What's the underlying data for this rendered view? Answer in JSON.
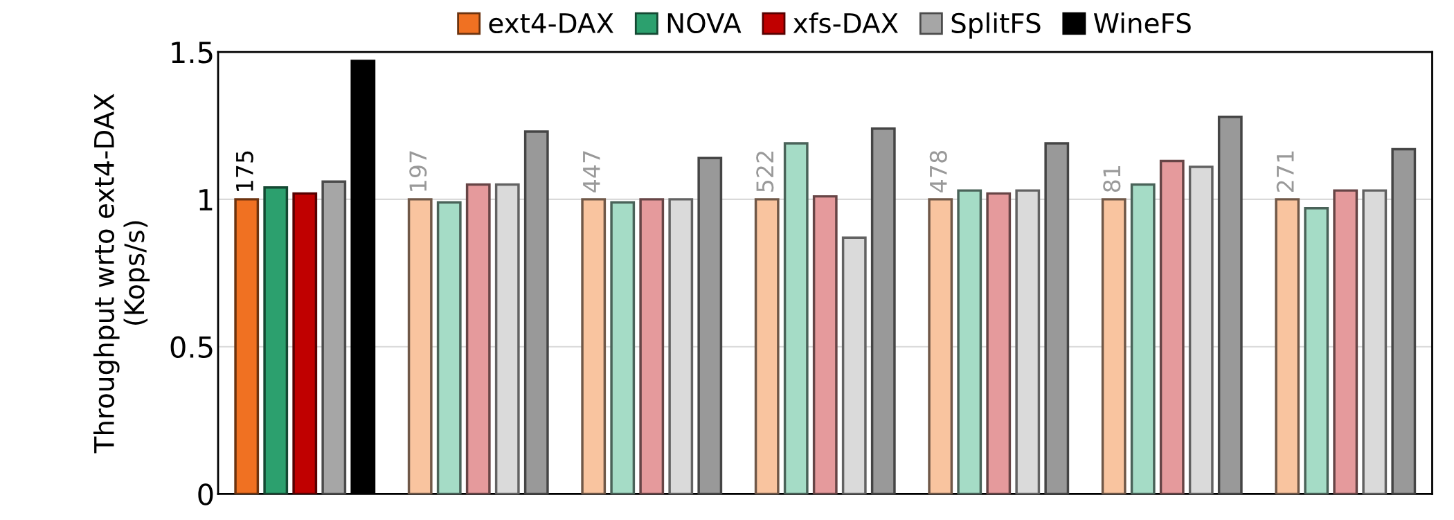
{
  "chart_data": {
    "type": "bar",
    "ylabel": "Throughput wrto ext4-DAX\n(Kops/s)",
    "categories": [
      null,
      null,
      null,
      null,
      null,
      null,
      null
    ],
    "series": [
      {
        "name": "ext4-DAX",
        "color": "#f07122",
        "colors": [
          "#f07122",
          "#f9c49f",
          "#f9c49f",
          "#f9c49f",
          "#f9c49f",
          "#f9c49f",
          "#f9c49f"
        ],
        "values": [
          1.0,
          1.0,
          1.0,
          1.0,
          1.0,
          1.0,
          1.0
        ]
      },
      {
        "name": "NOVA",
        "color": "#2ca06e",
        "colors": [
          "#2ca06e",
          "#a5dcc6",
          "#a5dcc6",
          "#a5dcc6",
          "#a5dcc6",
          "#a5dcc6",
          "#a5dcc6"
        ],
        "values": [
          1.04,
          0.99,
          0.99,
          1.19,
          1.03,
          1.05,
          0.97
        ]
      },
      {
        "name": "xfs-DAX",
        "color": "#c00000",
        "colors": [
          "#c00000",
          "#e59a9c",
          "#e59a9c",
          "#e59a9c",
          "#e59a9c",
          "#e59a9c",
          "#e59a9c"
        ],
        "values": [
          1.02,
          1.05,
          1.0,
          1.01,
          1.02,
          1.13,
          1.03
        ]
      },
      {
        "name": "SplitFS",
        "color": "#a6a6a6",
        "colors": [
          "#a6a6a6",
          "#dadada",
          "#dadada",
          "#dadada",
          "#dadada",
          "#dadada",
          "#dadada"
        ],
        "values": [
          1.06,
          1.05,
          1.0,
          0.87,
          1.03,
          1.11,
          1.03
        ]
      },
      {
        "name": "WineFS",
        "color": "#000000",
        "colors": [
          "#000000",
          "#999999",
          "#999999",
          "#999999",
          "#999999",
          "#999999",
          "#999999"
        ],
        "values": [
          1.47,
          1.23,
          1.14,
          1.24,
          1.19,
          1.28,
          1.17
        ]
      }
    ],
    "annotations": [
      {
        "text": "175",
        "y": 1.0
      },
      {
        "text": "197",
        "y": 1.0
      },
      {
        "text": "447",
        "y": 1.0
      },
      {
        "text": "522",
        "y": 1.0
      },
      {
        "text": "478",
        "y": 1.0
      },
      {
        "text": "81",
        "y": 1.0
      },
      {
        "text": "271",
        "y": 1.0
      }
    ],
    "ylim": [
      0,
      1.5
    ],
    "yticks": [
      0,
      0.5,
      1,
      1.5
    ],
    "grid": "y",
    "legend": "top",
    "tick_labels": "y"
  }
}
